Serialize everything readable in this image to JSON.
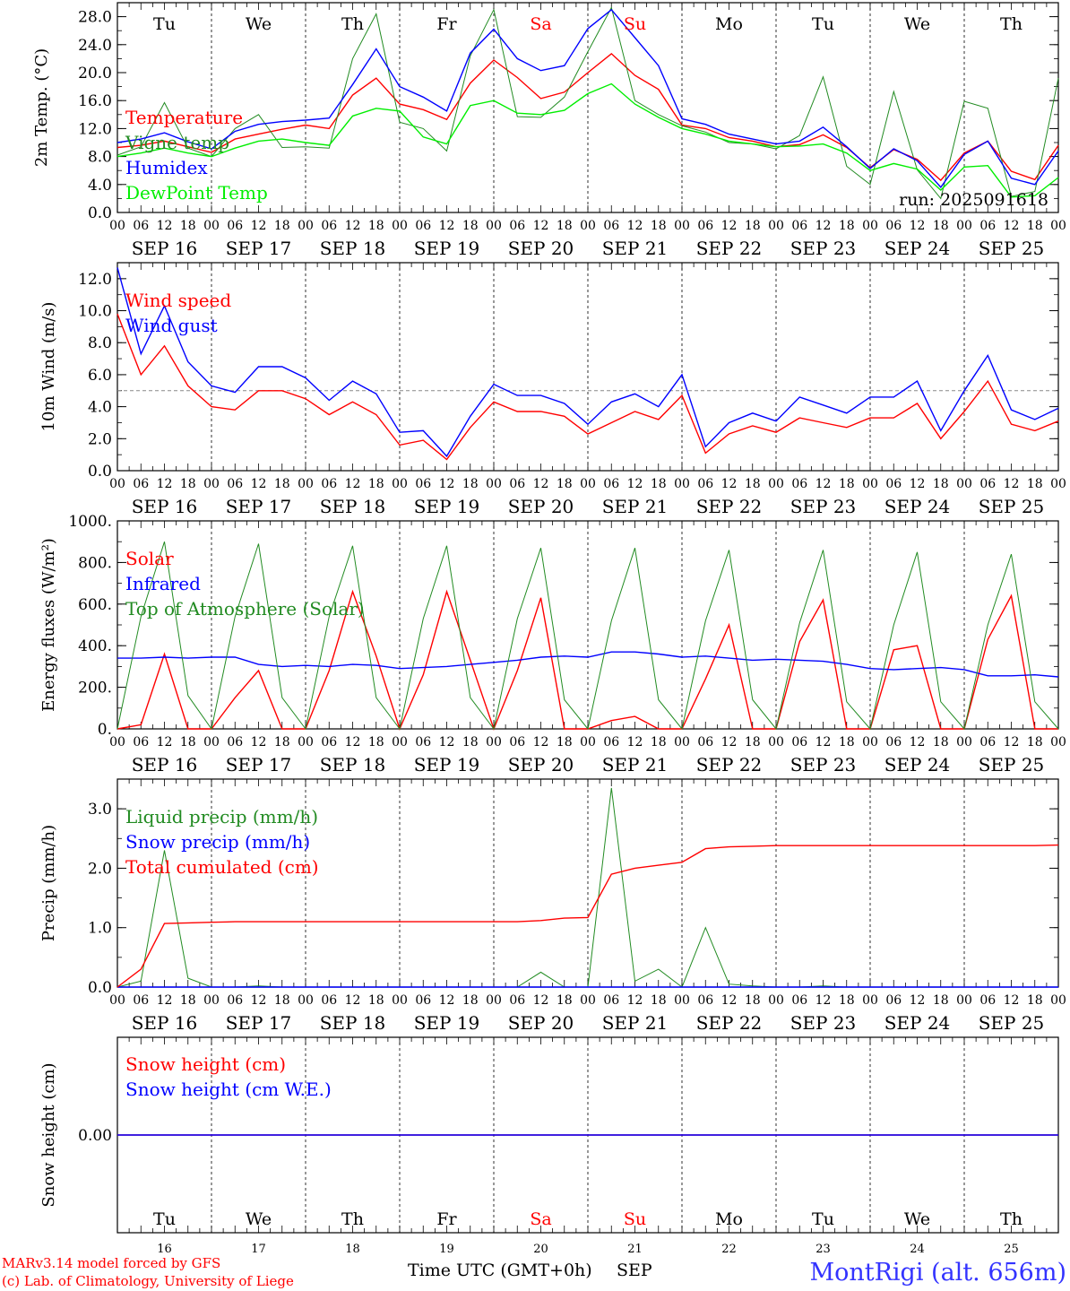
{
  "days": {
    "weekday_labels": [
      "Tu",
      "We",
      "Th",
      "Fr",
      "Sa",
      "Su",
      "Mo",
      "Tu",
      "We",
      "Th"
    ],
    "weekday_colors": [
      "#000000",
      "#000000",
      "#000000",
      "#000000",
      "#ff0000",
      "#ff0000",
      "#000000",
      "#000000",
      "#000000",
      "#000000"
    ],
    "date_labels": [
      "SEP 16",
      "SEP 17",
      "SEP 18",
      "SEP 19",
      "SEP 20",
      "SEP 21",
      "SEP 22",
      "SEP 23",
      "SEP 24",
      "SEP 25"
    ],
    "hour_labels": [
      "00",
      "06",
      "12",
      "18"
    ],
    "final_hour_label": "00",
    "day_numbers": [
      "16",
      "17",
      "18",
      "19",
      "20",
      "21",
      "22",
      "23",
      "24",
      "25"
    ]
  },
  "footer": {
    "model_line": "MARv3.14 model forced by GFS",
    "lab_line": "(c) Lab. of Climatology, University of Liege",
    "xaxis_title": "Time UTC (GMT+0h)",
    "month": "SEP",
    "station": "MontRigi (alt. 656m)"
  },
  "chart_data": [
    {
      "type": "line",
      "title": "",
      "ylabel": "2m Temp. (°C)",
      "ylim": [
        0,
        30
      ],
      "yticks": [
        "0.0",
        "4.0",
        "8.0",
        "12.0",
        "16.0",
        "20.0",
        "24.0",
        "28.0"
      ],
      "run_label": "run: 2025091618",
      "legend": [
        {
          "label": "Temperature",
          "color": "#ff0000"
        },
        {
          "label": "Vigne temp",
          "color": "#228b22"
        },
        {
          "label": "Humidex",
          "color": "#0000ff"
        },
        {
          "label": "DewPoint Temp",
          "color": "#00ee00"
        }
      ],
      "x": [
        0,
        6,
        12,
        18,
        24,
        30,
        36,
        42,
        48,
        54,
        60,
        66,
        72,
        78,
        84,
        90,
        96,
        102,
        108,
        114,
        120,
        126,
        132,
        138,
        144,
        150,
        156,
        162,
        168,
        174,
        180,
        186,
        192,
        198,
        204,
        210,
        216,
        222,
        228,
        234,
        240
      ],
      "series": [
        {
          "name": "Temperature",
          "color": "#ff0000",
          "values": [
            9.3,
            9.6,
            10.2,
            9.4,
            8.6,
            10.5,
            11.2,
            11.9,
            12.5,
            12.0,
            16.8,
            19.2,
            15.5,
            14.7,
            13.3,
            18.5,
            21.8,
            19.3,
            16.3,
            17.2,
            20.0,
            22.7,
            19.6,
            17.6,
            12.5,
            12.0,
            10.7,
            10.2,
            9.4,
            9.7,
            11.1,
            9.3,
            6.4,
            9.0,
            7.6,
            4.6,
            8.5,
            10.2,
            5.9,
            4.7,
            9.6
          ]
        },
        {
          "name": "Vigne temp",
          "color": "#228b22",
          "values": [
            8.2,
            9.4,
            15.7,
            9.2,
            8.0,
            12.0,
            14.0,
            9.3,
            9.4,
            9.2,
            22.0,
            28.4,
            12.9,
            12.0,
            8.8,
            22.4,
            29.0,
            13.7,
            13.6,
            16.5,
            23.0,
            29.3,
            16.0,
            14.0,
            12.4,
            11.5,
            10.0,
            9.8,
            9.1,
            11.0,
            19.4,
            6.6,
            4.0,
            17.3,
            6.1,
            2.0,
            15.9,
            14.9,
            2.3,
            3.0,
            19.2
          ]
        },
        {
          "name": "Humidex",
          "color": "#0000ff",
          "values": [
            10.0,
            10.5,
            11.4,
            10.1,
            9.1,
            11.6,
            12.6,
            13.0,
            13.2,
            13.5,
            18.3,
            23.4,
            18.0,
            16.5,
            14.5,
            22.8,
            26.2,
            22.0,
            20.3,
            21.0,
            26.3,
            29.0,
            25.0,
            21.0,
            13.4,
            12.6,
            11.2,
            10.5,
            9.8,
            10.2,
            12.2,
            9.4,
            6.3,
            9.1,
            7.4,
            3.6,
            8.3,
            10.2,
            4.9,
            4.0,
            8.8
          ]
        },
        {
          "name": "DewPoint Temp",
          "color": "#00ee00",
          "values": [
            8.0,
            8.5,
            9.2,
            8.5,
            8.0,
            9.2,
            10.2,
            10.5,
            10.0,
            9.6,
            13.8,
            14.9,
            14.5,
            10.8,
            9.8,
            15.3,
            16.0,
            14.2,
            14.0,
            14.6,
            17.0,
            18.4,
            15.5,
            13.6,
            12.0,
            11.2,
            10.2,
            9.8,
            9.4,
            9.5,
            9.8,
            8.5,
            6.0,
            7.0,
            6.2,
            3.2,
            6.5,
            6.7,
            2.2,
            2.4,
            5.0
          ]
        }
      ]
    },
    {
      "type": "line",
      "title": "",
      "ylabel": "10m Wind (m/s)",
      "ylim": [
        0,
        13
      ],
      "yticks": [
        "0.0",
        "2.0",
        "4.0",
        "6.0",
        "8.0",
        "10.0",
        "12.0"
      ],
      "reference_line": 5,
      "legend": [
        {
          "label": "Wind speed",
          "color": "#ff0000"
        },
        {
          "label": "Wind gust",
          "color": "#0000ff"
        }
      ],
      "x": [
        0,
        6,
        12,
        18,
        24,
        30,
        36,
        42,
        48,
        54,
        60,
        66,
        72,
        78,
        84,
        90,
        96,
        102,
        108,
        114,
        120,
        126,
        132,
        138,
        144,
        150,
        156,
        162,
        168,
        174,
        180,
        186,
        192,
        198,
        204,
        210,
        216,
        222,
        228,
        234,
        240
      ],
      "series": [
        {
          "name": "Wind speed",
          "color": "#ff0000",
          "values": [
            9.8,
            6.0,
            7.8,
            5.3,
            4.0,
            3.8,
            5.0,
            5.0,
            4.5,
            3.5,
            4.3,
            3.5,
            1.6,
            1.9,
            0.7,
            2.7,
            4.3,
            3.7,
            3.7,
            3.4,
            2.3,
            3.0,
            3.7,
            3.2,
            4.7,
            1.1,
            2.3,
            2.8,
            2.4,
            3.3,
            3.0,
            2.7,
            3.3,
            3.3,
            4.2,
            2.0,
            3.7,
            5.6,
            2.9,
            2.5,
            3.1
          ]
        },
        {
          "name": "Wind gust",
          "color": "#0000ff",
          "values": [
            12.7,
            7.3,
            10.3,
            6.8,
            5.3,
            4.9,
            6.5,
            6.5,
            5.8,
            4.4,
            5.6,
            4.8,
            2.4,
            2.5,
            0.9,
            3.4,
            5.4,
            4.7,
            4.7,
            4.2,
            2.9,
            4.3,
            4.8,
            4.0,
            6.0,
            1.5,
            3.0,
            3.6,
            3.1,
            4.6,
            4.1,
            3.6,
            4.6,
            4.6,
            5.6,
            2.5,
            5.0,
            7.2,
            3.8,
            3.2,
            3.9
          ]
        }
      ]
    },
    {
      "type": "line",
      "title": "",
      "ylabel": "Energy fluxes (W/m²)",
      "ylim": [
        0,
        1000
      ],
      "yticks": [
        "0.",
        "200.",
        "400.",
        "600.",
        "800.",
        "1000."
      ],
      "legend": [
        {
          "label": "Solar",
          "color": "#ff0000"
        },
        {
          "label": "Infrared",
          "color": "#0000ff"
        },
        {
          "label": "Top of Atmosphere (Solar)",
          "color": "#228b22"
        }
      ],
      "x": [
        0,
        6,
        12,
        18,
        24,
        30,
        36,
        42,
        48,
        54,
        60,
        66,
        72,
        78,
        84,
        90,
        96,
        102,
        108,
        114,
        120,
        126,
        132,
        138,
        144,
        150,
        156,
        162,
        168,
        174,
        180,
        186,
        192,
        198,
        204,
        210,
        216,
        222,
        228,
        234,
        240
      ],
      "series": [
        {
          "name": "Solar",
          "color": "#ff0000",
          "values": [
            0,
            20,
            360,
            0,
            0,
            150,
            280,
            0,
            0,
            280,
            660,
            350,
            0,
            260,
            660,
            330,
            0,
            280,
            630,
            0,
            0,
            40,
            60,
            0,
            0,
            240,
            500,
            0,
            0,
            420,
            620,
            0,
            0,
            380,
            400,
            0,
            0,
            430,
            640,
            0,
            0
          ]
        },
        {
          "name": "Infrared",
          "color": "#0000ff",
          "values": [
            340,
            340,
            345,
            340,
            345,
            345,
            310,
            300,
            305,
            300,
            310,
            305,
            290,
            295,
            300,
            310,
            320,
            330,
            345,
            350,
            345,
            370,
            370,
            360,
            345,
            350,
            340,
            330,
            335,
            330,
            325,
            310,
            290,
            285,
            290,
            295,
            285,
            255,
            255,
            260,
            250
          ]
        },
        {
          "name": "Top of Atmosphere (Solar)",
          "color": "#228b22",
          "values": [
            0,
            540,
            900,
            160,
            0,
            540,
            890,
            150,
            0,
            540,
            880,
            150,
            0,
            530,
            880,
            150,
            0,
            530,
            870,
            140,
            0,
            520,
            870,
            140,
            0,
            520,
            860,
            140,
            0,
            510,
            860,
            130,
            0,
            500,
            850,
            130,
            0,
            500,
            840,
            130,
            0
          ]
        }
      ]
    },
    {
      "type": "line",
      "title": "",
      "ylabel": "Precip (mm/h)",
      "ylim": [
        0,
        3.5
      ],
      "yticks": [
        "0.0",
        "1.0",
        "2.0",
        "3.0"
      ],
      "legend": [
        {
          "label": "Liquid precip (mm/h)",
          "color": "#228b22"
        },
        {
          "label": "Snow precip (mm/h)",
          "color": "#0000ff"
        },
        {
          "label": "Total cumulated (cm)",
          "color": "#ff0000"
        }
      ],
      "x": [
        0,
        6,
        12,
        18,
        24,
        30,
        36,
        42,
        48,
        54,
        60,
        66,
        72,
        78,
        84,
        90,
        96,
        102,
        108,
        114,
        120,
        126,
        132,
        138,
        144,
        150,
        156,
        162,
        168,
        174,
        180,
        186,
        192,
        198,
        204,
        210,
        216,
        222,
        228,
        234,
        240
      ],
      "series": [
        {
          "name": "Liquid precip (mm/h)",
          "color": "#228b22",
          "values": [
            0,
            0.1,
            2.3,
            0.15,
            0,
            0,
            0.02,
            0,
            0,
            0,
            0,
            0,
            0,
            0,
            0,
            0,
            0,
            0,
            0.25,
            0,
            0,
            3.35,
            0.1,
            0.3,
            0,
            1.0,
            0.05,
            0.02,
            0,
            0,
            0.02,
            0,
            0,
            0,
            0,
            0,
            0,
            0,
            0,
            0,
            0
          ]
        },
        {
          "name": "Snow precip (mm/h)",
          "color": "#0000ff",
          "values": [
            0,
            0,
            0,
            0,
            0,
            0,
            0,
            0,
            0,
            0,
            0,
            0,
            0,
            0,
            0,
            0,
            0,
            0,
            0,
            0,
            0,
            0,
            0,
            0,
            0,
            0,
            0,
            0,
            0,
            0,
            0,
            0,
            0,
            0,
            0,
            0,
            0,
            0,
            0,
            0,
            0
          ]
        },
        {
          "name": "Total cumulated (cm)",
          "color": "#ff0000",
          "values": [
            0,
            0.3,
            1.07,
            1.08,
            1.09,
            1.1,
            1.1,
            1.1,
            1.1,
            1.1,
            1.1,
            1.1,
            1.1,
            1.1,
            1.1,
            1.1,
            1.1,
            1.1,
            1.12,
            1.16,
            1.17,
            1.9,
            2.0,
            2.05,
            2.1,
            2.33,
            2.36,
            2.37,
            2.38,
            2.38,
            2.38,
            2.38,
            2.38,
            2.38,
            2.38,
            2.38,
            2.38,
            2.38,
            2.38,
            2.38,
            2.39
          ]
        }
      ]
    },
    {
      "type": "line",
      "title": "",
      "ylabel": "Snow height (cm)",
      "ylim": [
        -1,
        1
      ],
      "yticks": [
        "0.00"
      ],
      "legend": [
        {
          "label": "Snow height (cm)",
          "color": "#ff0000"
        },
        {
          "label": "Snow height (cm W.E.)",
          "color": "#0000ff"
        }
      ],
      "x": [
        0,
        240
      ],
      "series": [
        {
          "name": "Snow height (cm)",
          "color": "#ff0000",
          "values": [
            0,
            0
          ]
        },
        {
          "name": "Snow height (cm W.E.)",
          "color": "#0000ff",
          "values": [
            0,
            0
          ]
        }
      ]
    }
  ]
}
